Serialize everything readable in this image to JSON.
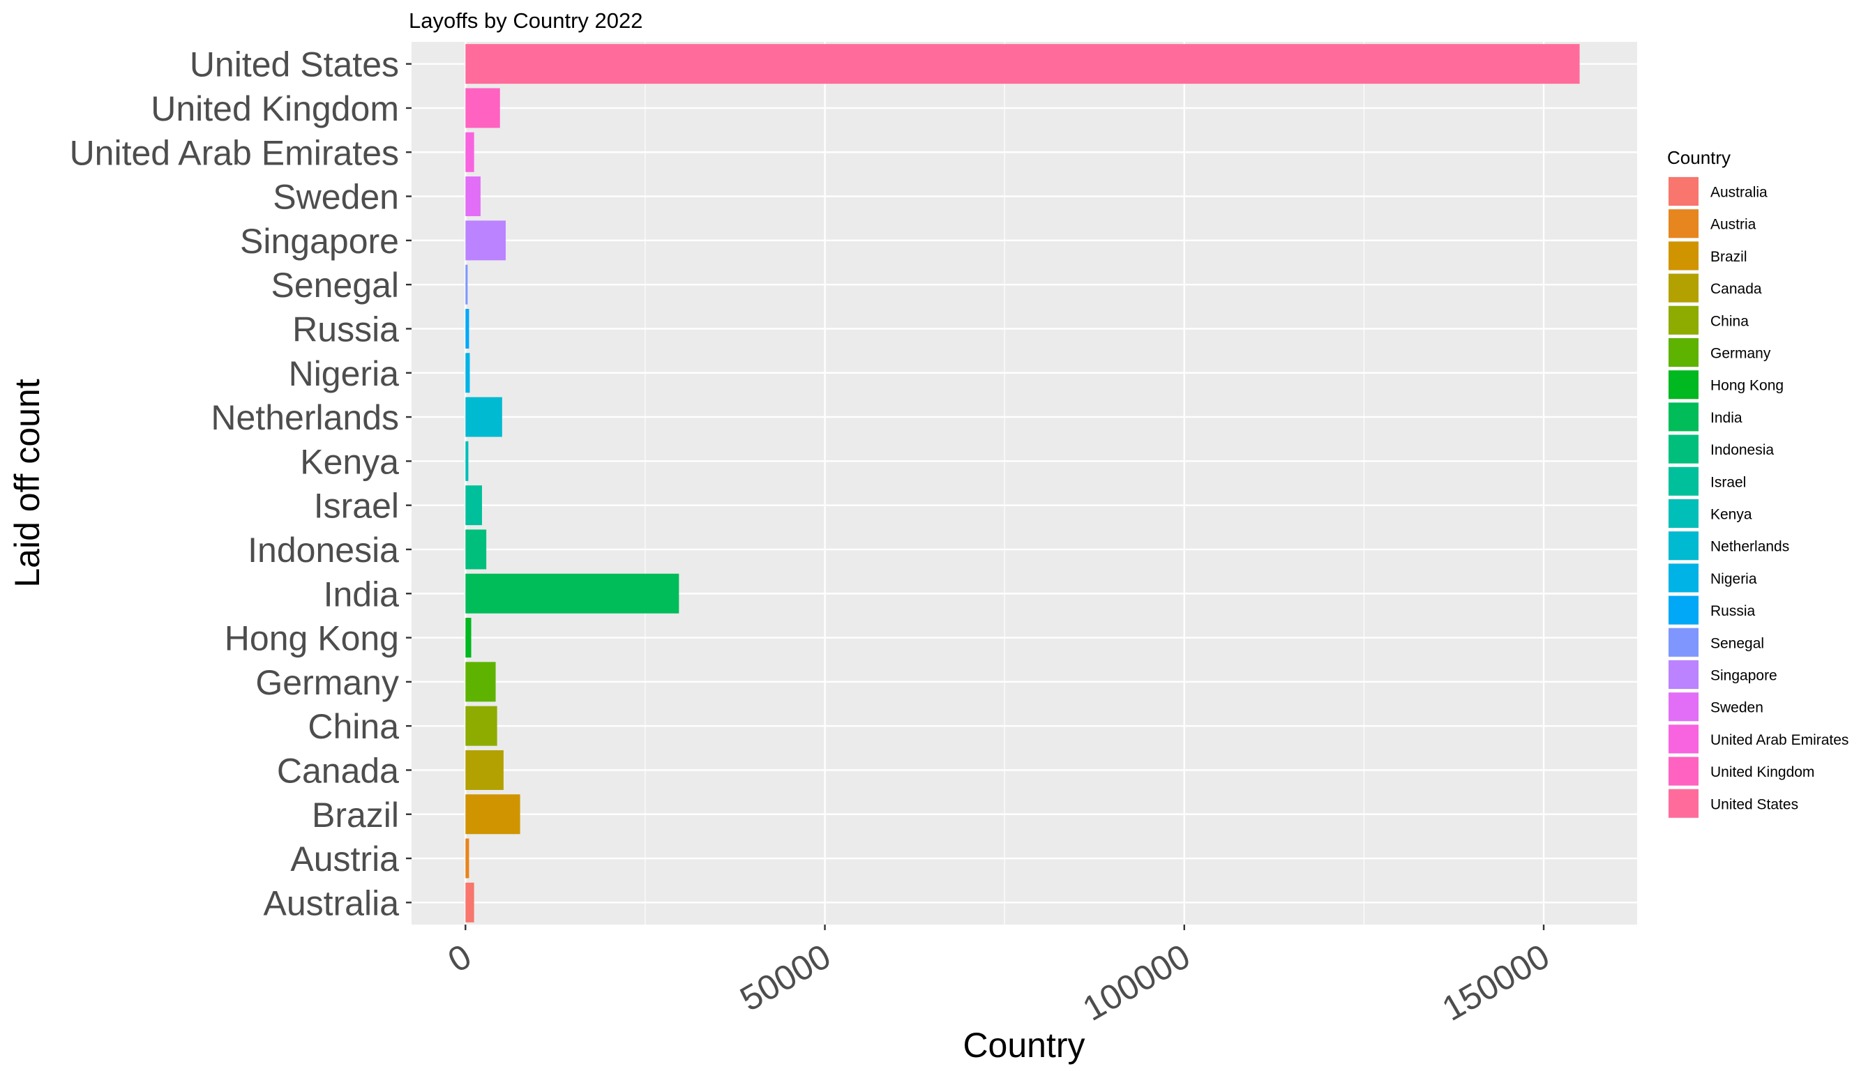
{
  "chart_data": {
    "type": "bar",
    "orientation": "horizontal",
    "title": "Layoffs by Country 2022",
    "xlabel": "Country",
    "ylabel": "Laid off count",
    "xlim": [
      -7500,
      163000
    ],
    "xticks": [
      0,
      50000,
      100000,
      150000
    ],
    "xtick_labels": [
      "0",
      "50000",
      "100000",
      "150000"
    ],
    "grid": true,
    "legend_position": "right",
    "legend_title": "Country",
    "categories": [
      "Australia",
      "Austria",
      "Brazil",
      "Canada",
      "China",
      "Germany",
      "Hong Kong",
      "India",
      "Indonesia",
      "Israel",
      "Kenya",
      "Netherlands",
      "Nigeria",
      "Russia",
      "Senegal",
      "Singapore",
      "Sweden",
      "United Arab Emirates",
      "United Kingdom",
      "United States"
    ],
    "values": [
      1200,
      500,
      7600,
      5300,
      4400,
      4200,
      800,
      29700,
      2900,
      2300,
      400,
      5100,
      600,
      500,
      300,
      5600,
      2100,
      1200,
      4800,
      155000
    ],
    "colors": [
      "#F8766D",
      "#E7851E",
      "#D09400",
      "#B2A100",
      "#8EAB00",
      "#5EB300",
      "#00B81F",
      "#00BC59",
      "#00BF7D",
      "#00C09C",
      "#00BFB8",
      "#00BAD1",
      "#00B3E6",
      "#00A8F7",
      "#7F96FF",
      "#BB83FF",
      "#E26EF7",
      "#F863DF",
      "#FF62C0",
      "#FF6C9C"
    ]
  }
}
